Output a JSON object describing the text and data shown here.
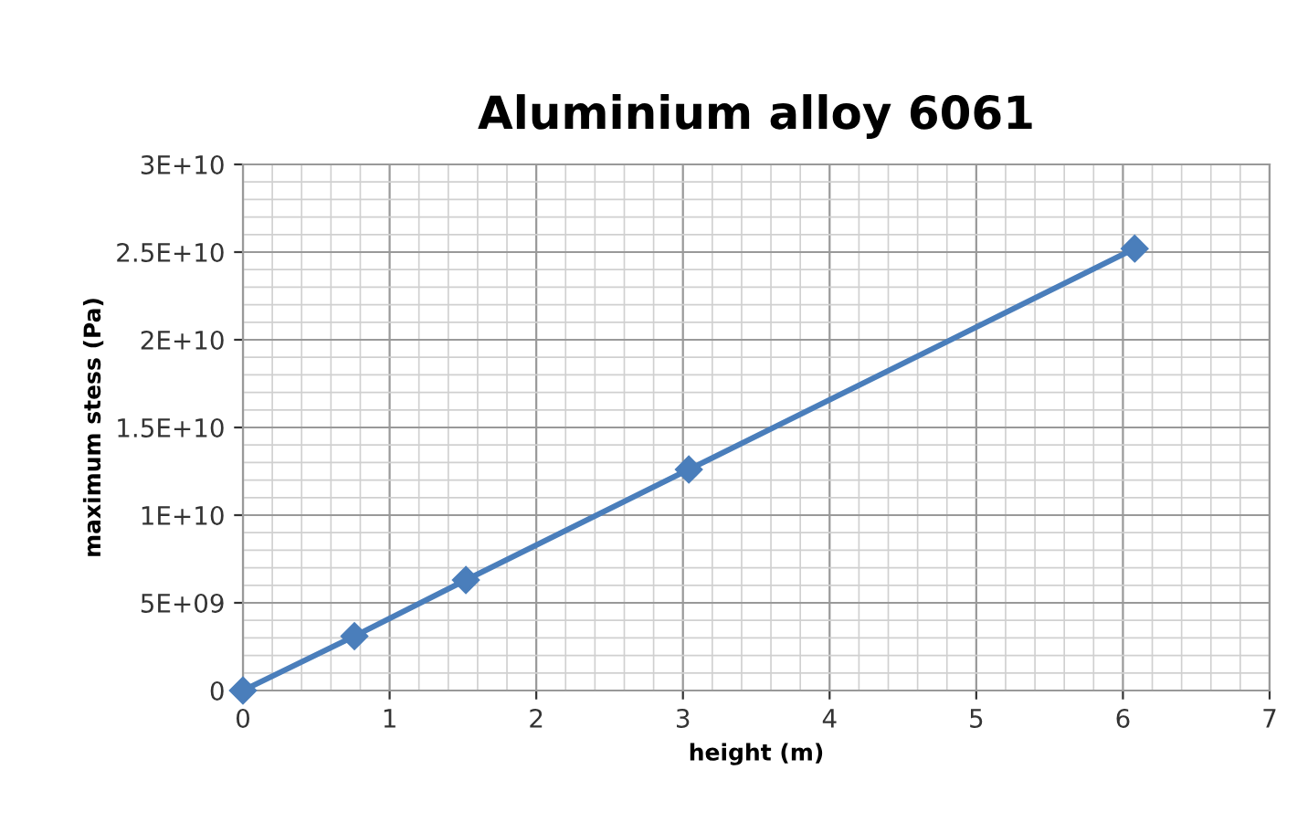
{
  "chart_data": {
    "type": "line",
    "title": "Aluminium alloy 6061",
    "xlabel": "height (m)",
    "ylabel": "maximum stess (Pa)",
    "x": [
      0,
      0.76,
      1.52,
      3.04,
      6.08
    ],
    "series": [
      {
        "color": "#4a7ebb",
        "values": [
          0,
          3100000000.0,
          6300000000.0,
          12600000000.0,
          25200000000.0
        ]
      }
    ],
    "xlim": [
      0,
      7
    ],
    "xticks": [
      0,
      1,
      2,
      3,
      4,
      5,
      6,
      7
    ],
    "ylim": [
      0,
      30000000000.0
    ],
    "yticks": [
      0,
      {
        "value": 5000000000.0,
        "label": "5E+09"
      },
      {
        "value": 10000000000.0,
        "label": "1E+10"
      },
      {
        "value": 15000000000.0,
        "label": "1.5E+10"
      },
      {
        "value": 20000000000.0,
        "label": "2E+10"
      },
      {
        "value": 25000000000.0,
        "label": "2.5E+10"
      },
      {
        "value": 30000000000.0,
        "label": "3E+10"
      }
    ],
    "grid": true,
    "marker": "diamond",
    "line_style": "solid"
  }
}
